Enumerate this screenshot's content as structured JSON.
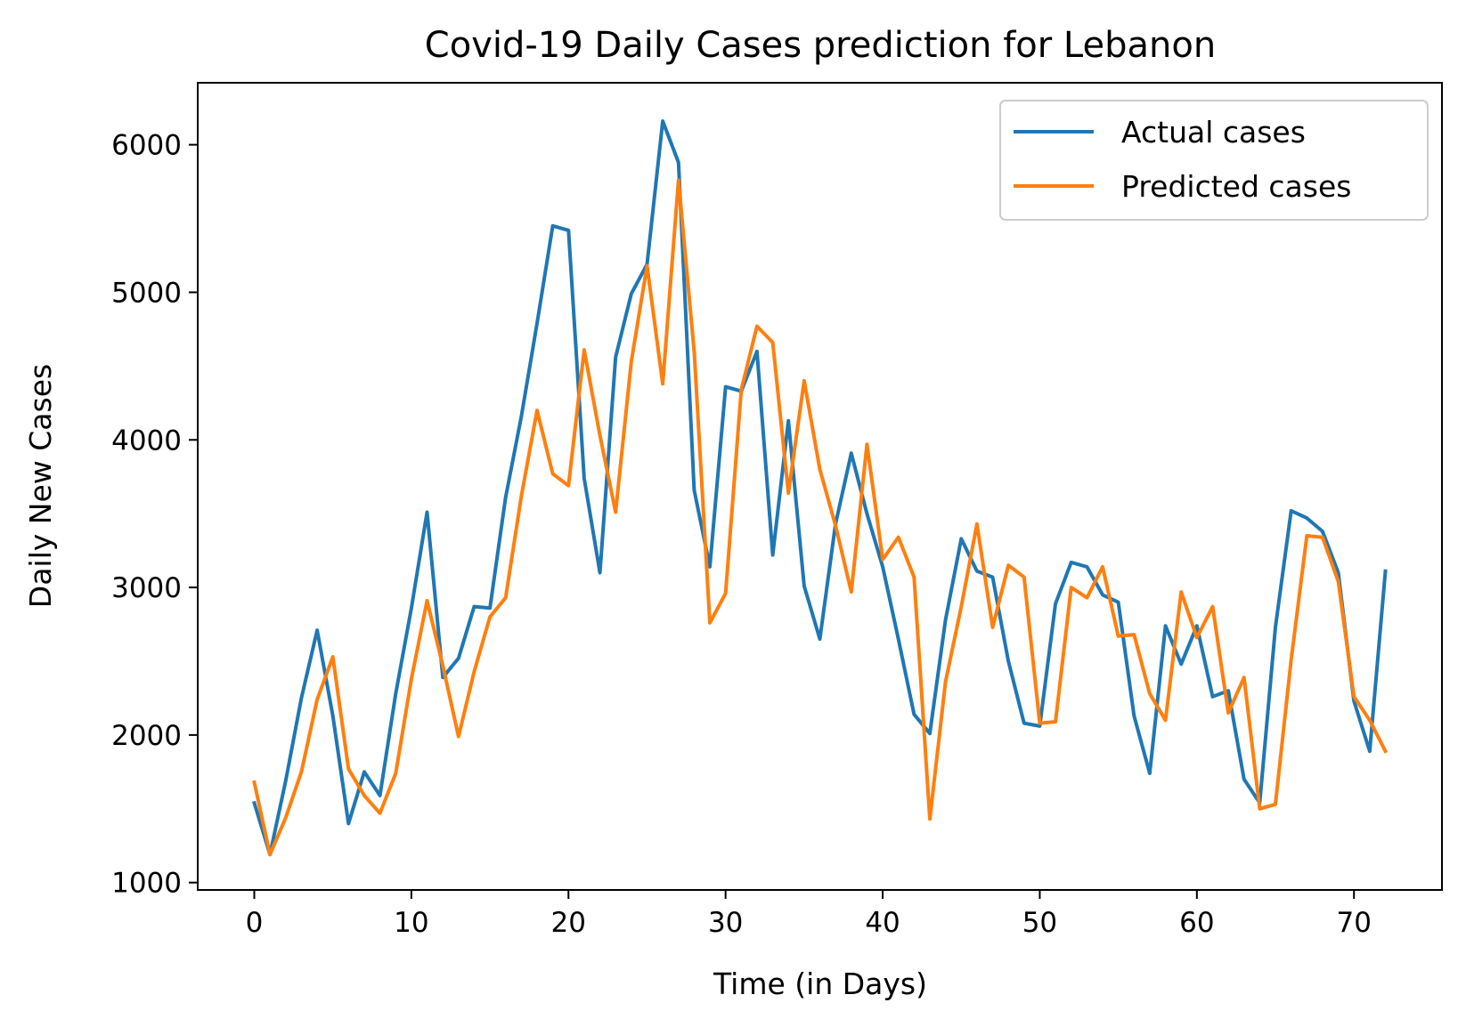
{
  "chart_data": {
    "type": "line",
    "title": "Covid-19 Daily Cases prediction for Lebanon",
    "xlabel": "Time (in Days)",
    "ylabel": "Daily New Cases",
    "xlim": [
      -3.6,
      75.6
    ],
    "ylim": [
      950,
      6420
    ],
    "xticks": [
      0,
      10,
      20,
      30,
      40,
      50,
      60,
      70
    ],
    "xtick_labels": [
      "0",
      "10",
      "20",
      "30",
      "40",
      "50",
      "60",
      "70"
    ],
    "yticks": [
      1000,
      2000,
      3000,
      4000,
      5000,
      6000
    ],
    "ytick_labels": [
      "1000",
      "2000",
      "3000",
      "4000",
      "5000",
      "6000"
    ],
    "grid": false,
    "legend_position": "upper right",
    "x": [
      0,
      1,
      2,
      3,
      4,
      5,
      6,
      7,
      8,
      9,
      10,
      11,
      12,
      13,
      14,
      15,
      16,
      17,
      18,
      19,
      20,
      21,
      22,
      23,
      24,
      25,
      26,
      27,
      28,
      29,
      30,
      31,
      32,
      33,
      34,
      35,
      36,
      37,
      38,
      39,
      40,
      41,
      42,
      43,
      44,
      45,
      46,
      47,
      48,
      49,
      50,
      51,
      52,
      53,
      54,
      55,
      56,
      57,
      58,
      59,
      60,
      61,
      62,
      63,
      64,
      65,
      66,
      67,
      68,
      69,
      70,
      71,
      72
    ],
    "series": [
      {
        "name": "Actual cases",
        "color": "#1f77b4",
        "values": [
          1540,
          1190,
          1690,
          2250,
          2710,
          2130,
          1400,
          1750,
          1590,
          2280,
          2860,
          3510,
          2390,
          2520,
          2870,
          2860,
          3610,
          4160,
          4790,
          5450,
          5420,
          3740,
          3100,
          4560,
          4990,
          5190,
          6160,
          5880,
          3660,
          3140,
          4360,
          4330,
          4600,
          3220,
          4130,
          3010,
          2650,
          3430,
          3910,
          3500,
          3140,
          2650,
          2140,
          2010,
          2780,
          3330,
          3110,
          3070,
          2500,
          2080,
          2060,
          2890,
          3170,
          3140,
          2950,
          2900,
          2130,
          1740,
          2740,
          2480,
          2740,
          2260,
          2300,
          1700,
          1540,
          2730,
          3520,
          3470,
          3380,
          3100,
          2230,
          1890,
          3110
        ]
      },
      {
        "name": "Predicted cases",
        "color": "#ff7f0e",
        "values": [
          1680,
          1190,
          1440,
          1750,
          2240,
          2530,
          1770,
          1590,
          1470,
          1740,
          2380,
          2910,
          2470,
          1990,
          2430,
          2800,
          2930,
          3620,
          4200,
          3770,
          3690,
          4610,
          4030,
          3510,
          4530,
          5180,
          4380,
          5760,
          4600,
          2760,
          2960,
          4340,
          4770,
          4660,
          3640,
          4400,
          3800,
          3420,
          2970,
          3970,
          3190,
          3340,
          3070,
          1430,
          2360,
          2870,
          3430,
          2730,
          3150,
          3070,
          2080,
          2090,
          3000,
          2930,
          3140,
          2670,
          2680,
          2280,
          2100,
          2970,
          2660,
          2870,
          2150,
          2390,
          1500,
          1530,
          2510,
          3350,
          3340,
          3040,
          2260,
          2100,
          1890
        ]
      }
    ]
  }
}
